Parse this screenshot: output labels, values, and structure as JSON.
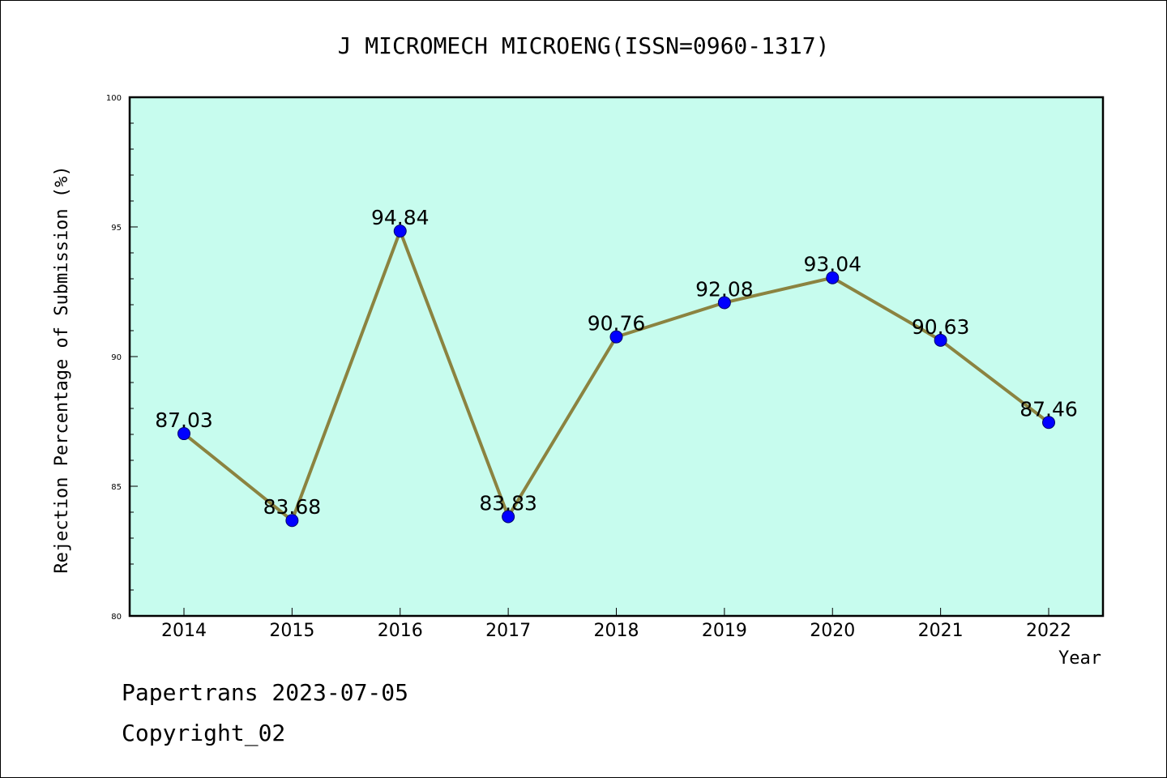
{
  "chart_data": {
    "type": "line",
    "title": "J MICROMECH MICROENG(ISSN=0960-1317)",
    "xlabel": "Year",
    "ylabel": "Rejection Percentage of Submission (%)",
    "categories": [
      "2014",
      "2015",
      "2016",
      "2017",
      "2018",
      "2019",
      "2020",
      "2021",
      "2022"
    ],
    "values": [
      87.03,
      83.68,
      94.84,
      83.83,
      90.76,
      92.08,
      93.04,
      90.63,
      87.46
    ],
    "data_labels": [
      "87.03",
      "83.68",
      "94.84",
      "83.83",
      "90.76",
      "92.08",
      "93.04",
      "90.63",
      "87.46"
    ],
    "ylim": [
      80,
      100
    ],
    "yticks": [
      80,
      85,
      90,
      95,
      100
    ],
    "grid": false,
    "legend": "none",
    "colors": {
      "plot_background": "#c7fcee",
      "line": "#8b8340",
      "marker": "#0000ff"
    }
  },
  "footer": {
    "line1": "Papertrans 2023-07-05",
    "line2": "Copyright_02"
  }
}
